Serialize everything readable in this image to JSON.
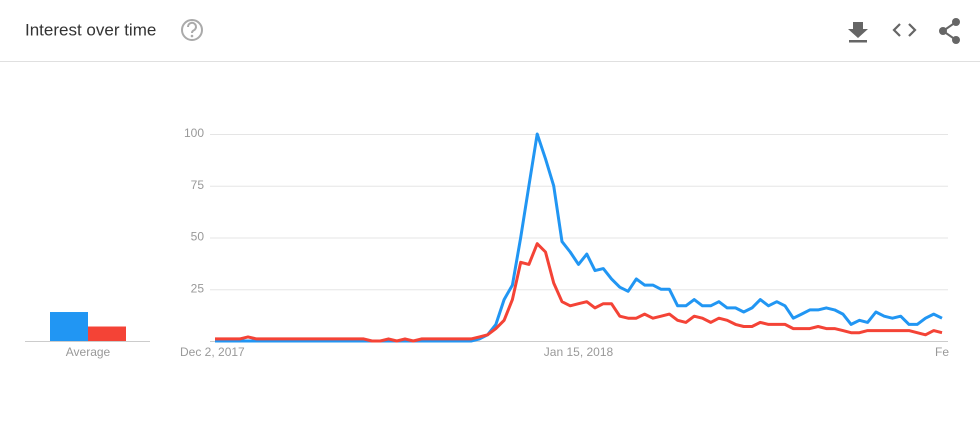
{
  "header": {
    "title": "Interest over time"
  },
  "chart_data": {
    "type": "line",
    "categories": [
      "Dec 2, 2017",
      null,
      null,
      null,
      null,
      null,
      null,
      null,
      null,
      null,
      null,
      null,
      null,
      null,
      null,
      null,
      null,
      null,
      null,
      null,
      null,
      null,
      null,
      null,
      null,
      null,
      null,
      null,
      null,
      null,
      null,
      null,
      null,
      null,
      null,
      null,
      null,
      null,
      null,
      null,
      null,
      null,
      null,
      null,
      "Jan 15, 2018",
      null,
      null,
      null,
      null,
      null,
      null,
      null,
      null,
      null,
      null,
      null,
      null,
      null,
      null,
      null,
      null,
      null,
      null,
      null,
      null,
      null,
      null,
      null,
      null,
      null,
      null,
      null,
      null,
      null,
      null,
      null,
      null,
      null,
      null,
      null,
      null,
      null,
      null,
      null,
      null,
      null,
      null,
      null,
      "Fe"
    ],
    "series": [
      {
        "color": "#2196f3",
        "values": [
          0,
          0,
          0,
          0,
          0,
          0,
          0,
          0,
          0,
          0,
          0,
          0,
          0,
          0,
          0,
          0,
          0,
          0,
          0,
          0,
          0,
          0,
          0,
          0,
          0,
          0,
          0,
          0,
          0,
          0,
          0,
          0,
          1,
          3,
          8,
          20,
          27,
          50,
          75,
          100,
          88,
          75,
          48,
          43,
          37,
          42,
          34,
          35,
          30,
          26,
          24,
          30,
          27,
          27,
          25,
          25,
          17,
          17,
          20,
          17,
          17,
          19,
          16,
          16,
          14,
          16,
          20,
          17,
          19,
          17,
          11,
          13,
          15,
          15,
          16,
          15,
          13,
          8,
          10,
          9,
          14,
          12,
          11,
          12,
          8,
          8,
          11,
          13,
          11
        ]
      },
      {
        "color": "#f44336",
        "values": [
          1,
          1,
          1,
          1,
          2,
          1,
          1,
          1,
          1,
          1,
          1,
          1,
          1,
          1,
          1,
          1,
          1,
          1,
          1,
          0,
          0,
          1,
          0,
          1,
          0,
          1,
          1,
          1,
          1,
          1,
          1,
          1,
          2,
          3,
          6,
          10,
          20,
          38,
          37,
          47,
          43,
          28,
          19,
          17,
          18,
          19,
          16,
          18,
          18,
          12,
          11,
          11,
          13,
          11,
          12,
          13,
          10,
          9,
          12,
          11,
          9,
          11,
          10,
          8,
          7,
          7,
          9,
          8,
          8,
          8,
          6,
          6,
          6,
          7,
          6,
          6,
          5,
          4,
          4,
          5,
          5,
          5,
          5,
          5,
          5,
          4,
          3,
          5,
          4
        ]
      }
    ],
    "ylim": [
      0,
      100
    ],
    "yticks": [
      25,
      50,
      75,
      100
    ],
    "grid": true,
    "average": {
      "label": "Average",
      "values": [
        14,
        7
      ]
    }
  }
}
